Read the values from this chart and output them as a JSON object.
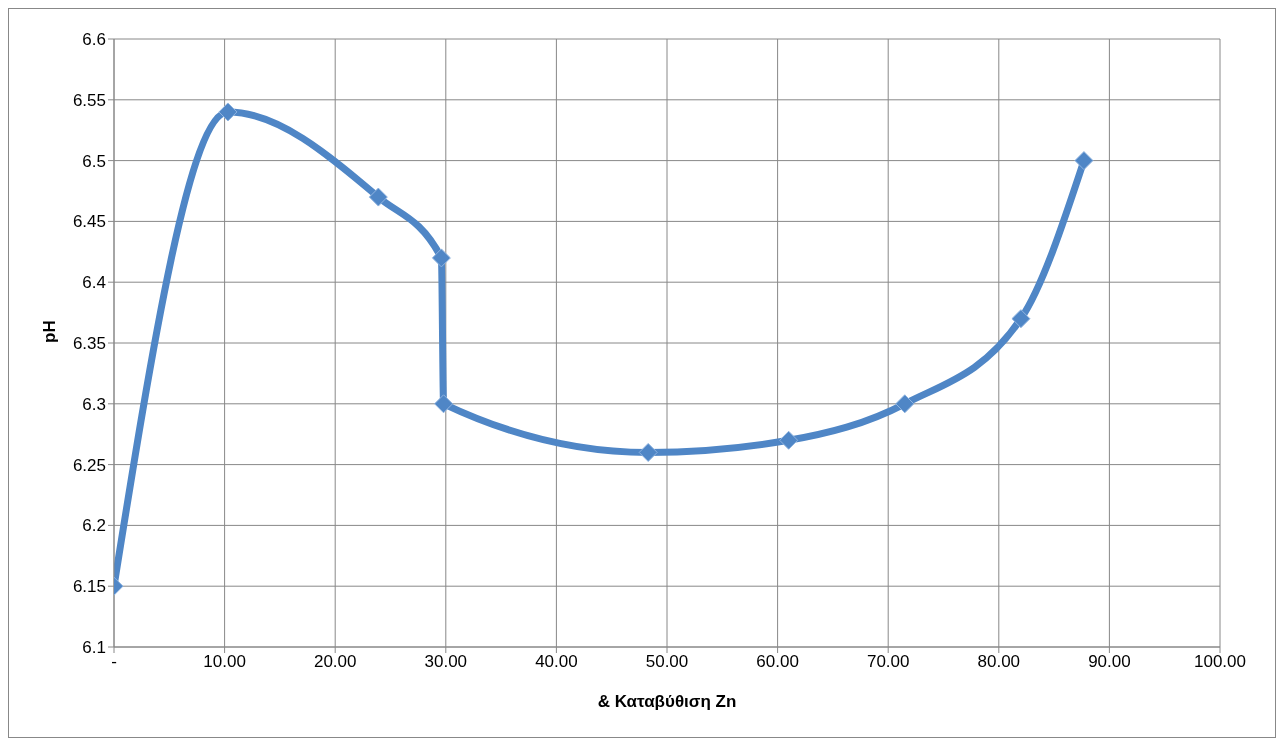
{
  "chart_data": {
    "type": "line",
    "xlabel": "& Καταβύθιση Zn",
    "ylabel": "pH",
    "x": [
      0,
      10.3,
      23.9,
      29.6,
      29.8,
      48.3,
      61.0,
      71.5,
      82.0,
      87.7
    ],
    "series": [
      {
        "color": "#4f86c6",
        "values": [
          6.15,
          6.54,
          6.47,
          6.42,
          6.3,
          6.26,
          6.27,
          6.3,
          6.37,
          6.5
        ]
      }
    ],
    "xlim": [
      0,
      100
    ],
    "xticks": [
      {
        "value": 0,
        "label": "-"
      },
      {
        "value": 10,
        "label": "10.00"
      },
      {
        "value": 20,
        "label": "20.00"
      },
      {
        "value": 30,
        "label": "30.00"
      },
      {
        "value": 40,
        "label": "40.00"
      },
      {
        "value": 50,
        "label": "50.00"
      },
      {
        "value": 60,
        "label": "60.00"
      },
      {
        "value": 70,
        "label": "70.00"
      },
      {
        "value": 80,
        "label": "80.00"
      },
      {
        "value": 90,
        "label": "90.00"
      },
      {
        "value": 100,
        "label": "100.00"
      }
    ],
    "ylim": [
      6.1,
      6.6
    ],
    "yticks": [
      6.1,
      6.15,
      6.2,
      6.25,
      6.3,
      6.35,
      6.4,
      6.45,
      6.5,
      6.55,
      6.6
    ],
    "grid": true,
    "marker": "diamond",
    "line_style": "solid"
  }
}
